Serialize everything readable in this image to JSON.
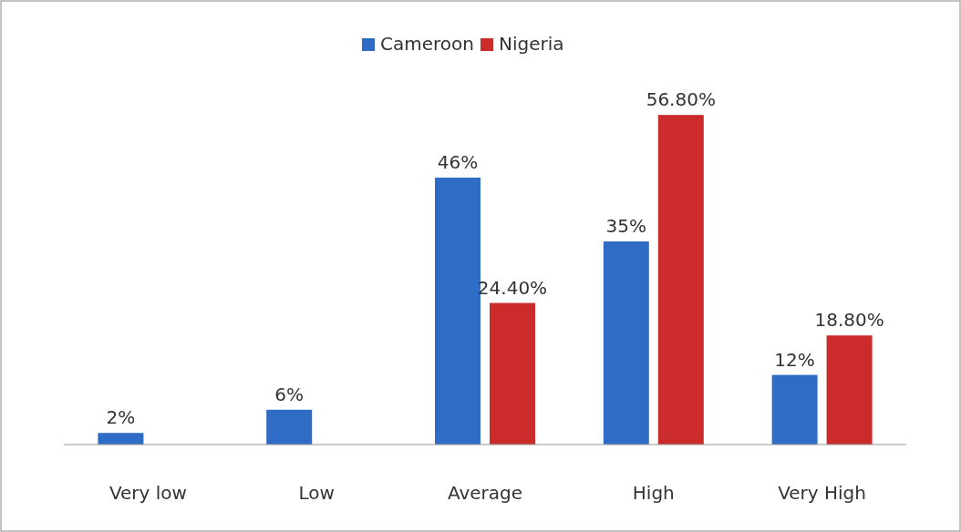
{
  "chart_data": {
    "type": "bar",
    "categories": [
      "Very low",
      "Low",
      "Average",
      "High",
      "Very High"
    ],
    "series": [
      {
        "name": "Cameroon",
        "color": "#2f6cc6",
        "values": [
          2,
          6,
          46,
          35,
          12
        ],
        "value_labels": [
          "2%",
          "6%",
          "46%",
          "35%",
          "12%"
        ]
      },
      {
        "name": "Nigeria",
        "color": "#cc2b2b",
        "values": [
          null,
          null,
          24.4,
          56.8,
          18.8
        ],
        "value_labels": [
          null,
          null,
          "24.40%",
          "56.80%",
          "18.80%"
        ]
      }
    ],
    "legend": "top"
  }
}
